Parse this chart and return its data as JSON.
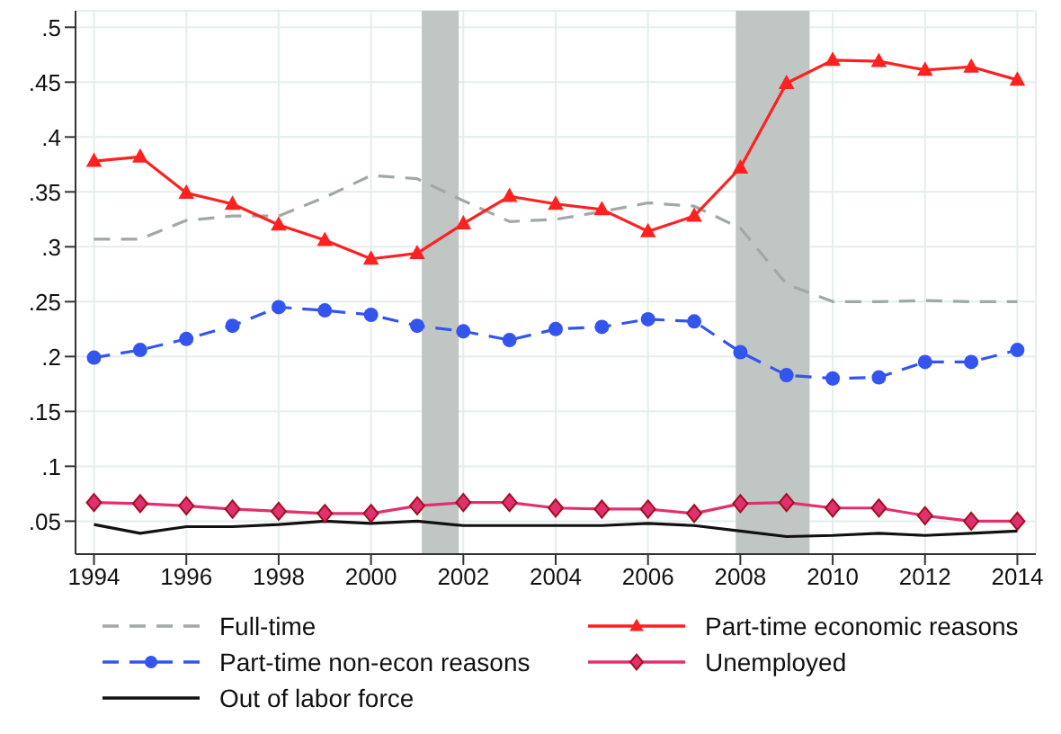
{
  "chart_data": {
    "type": "line",
    "x": [
      1994,
      1995,
      1996,
      1997,
      1998,
      1999,
      2000,
      2001,
      2002,
      2003,
      2004,
      2005,
      2006,
      2007,
      2008,
      2009,
      2010,
      2011,
      2012,
      2013,
      2014
    ],
    "series": [
      {
        "name": "Full-time",
        "color": "#a0a8a8",
        "line_style": "dashed",
        "marker": "none",
        "values": [
          0.307,
          0.307,
          0.324,
          0.328,
          0.328,
          0.345,
          0.365,
          0.362,
          0.342,
          0.323,
          0.325,
          0.332,
          0.34,
          0.337,
          0.317,
          0.266,
          0.25,
          0.25,
          0.251,
          0.25,
          0.25
        ]
      },
      {
        "name": "Part-time economic reasons",
        "color": "#ff2020",
        "line_style": "solid",
        "marker": "triangle",
        "values": [
          0.378,
          0.382,
          0.349,
          0.339,
          0.32,
          0.306,
          0.289,
          0.294,
          0.321,
          0.346,
          0.339,
          0.334,
          0.314,
          0.328,
          0.372,
          0.449,
          0.47,
          0.469,
          0.461,
          0.464,
          0.452
        ]
      },
      {
        "name": "Part-time non-econ reasons",
        "color": "#3355ee",
        "line_style": "dashed",
        "marker": "circle",
        "values": [
          0.199,
          0.206,
          0.216,
          0.228,
          0.245,
          0.242,
          0.238,
          0.228,
          0.223,
          0.215,
          0.225,
          0.227,
          0.234,
          0.232,
          0.204,
          0.183,
          0.18,
          0.181,
          0.195,
          0.195,
          0.206
        ]
      },
      {
        "name": "Unemployed",
        "color": "#e03070",
        "line_style": "solid",
        "marker": "diamond",
        "values": [
          0.067,
          0.066,
          0.064,
          0.061,
          0.059,
          0.057,
          0.057,
          0.064,
          0.067,
          0.067,
          0.062,
          0.061,
          0.061,
          0.057,
          0.066,
          0.067,
          0.062,
          0.062,
          0.055,
          0.05,
          0.05
        ]
      },
      {
        "name": "Out of labor force",
        "color": "#111111",
        "line_style": "solid",
        "marker": "none",
        "values": [
          0.047,
          0.039,
          0.045,
          0.045,
          0.047,
          0.05,
          0.048,
          0.05,
          0.046,
          0.046,
          0.046,
          0.046,
          0.048,
          0.046,
          0.041,
          0.036,
          0.037,
          0.039,
          0.037,
          0.039,
          0.041
        ]
      }
    ],
    "xlim": [
      1993.6,
      2014.4
    ],
    "xticks": [
      1994,
      1996,
      1998,
      2000,
      2002,
      2004,
      2006,
      2008,
      2010,
      2012,
      2014
    ],
    "ylim": [
      0.02,
      0.515
    ],
    "yticks": [
      {
        "value": 0.05,
        "label": ".05"
      },
      {
        "value": 0.1,
        "label": ".1"
      },
      {
        "value": 0.15,
        "label": ".15"
      },
      {
        "value": 0.2,
        "label": ".2"
      },
      {
        "value": 0.25,
        "label": ".25"
      },
      {
        "value": 0.3,
        "label": ".3"
      },
      {
        "value": 0.35,
        "label": ".35"
      },
      {
        "value": 0.4,
        "label": ".4"
      },
      {
        "value": 0.45,
        "label": ".45"
      },
      {
        "value": 0.5,
        "label": ".5"
      }
    ],
    "bands": [
      {
        "axis": "x",
        "from": 2001.1,
        "to": 2001.9,
        "color": "#c0c6c4"
      },
      {
        "axis": "x",
        "from": 2007.9,
        "to": 2009.5,
        "color": "#c0c6c4"
      }
    ],
    "grid": true,
    "legend": "bottom"
  }
}
